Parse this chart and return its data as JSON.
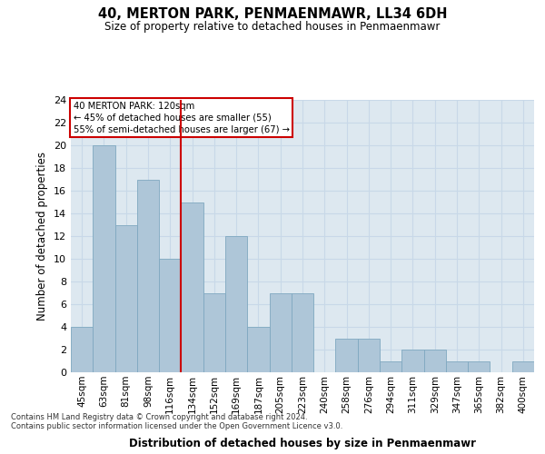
{
  "title1": "40, MERTON PARK, PENMAENMAWR, LL34 6DH",
  "title2": "Size of property relative to detached houses in Penmaenmawr",
  "xlabel": "Distribution of detached houses by size in Penmaenmawr",
  "ylabel": "Number of detached properties",
  "categories": [
    "45sqm",
    "63sqm",
    "81sqm",
    "98sqm",
    "116sqm",
    "134sqm",
    "152sqm",
    "169sqm",
    "187sqm",
    "205sqm",
    "223sqm",
    "240sqm",
    "258sqm",
    "276sqm",
    "294sqm",
    "311sqm",
    "329sqm",
    "347sqm",
    "365sqm",
    "382sqm",
    "400sqm"
  ],
  "values": [
    4,
    20,
    13,
    17,
    10,
    15,
    7,
    12,
    4,
    7,
    7,
    0,
    3,
    3,
    1,
    2,
    2,
    1,
    1,
    0,
    1
  ],
  "bar_color": "#aec6d8",
  "bar_edgecolor": "#7fa8c0",
  "vline_x": 4.5,
  "vline_color": "#cc0000",
  "annotation_line1": "40 MERTON PARK: 120sqm",
  "annotation_line2": "← 45% of detached houses are smaller (55)",
  "annotation_line3": "55% of semi-detached houses are larger (67) →",
  "annotation_box_color": "#cc0000",
  "ylim": [
    0,
    24
  ],
  "yticks": [
    0,
    2,
    4,
    6,
    8,
    10,
    12,
    14,
    16,
    18,
    20,
    22,
    24
  ],
  "grid_color": "#c8d8e8",
  "bg_color": "#dde8f0",
  "footnote1": "Contains HM Land Registry data © Crown copyright and database right 2024.",
  "footnote2": "Contains public sector information licensed under the Open Government Licence v3.0."
}
